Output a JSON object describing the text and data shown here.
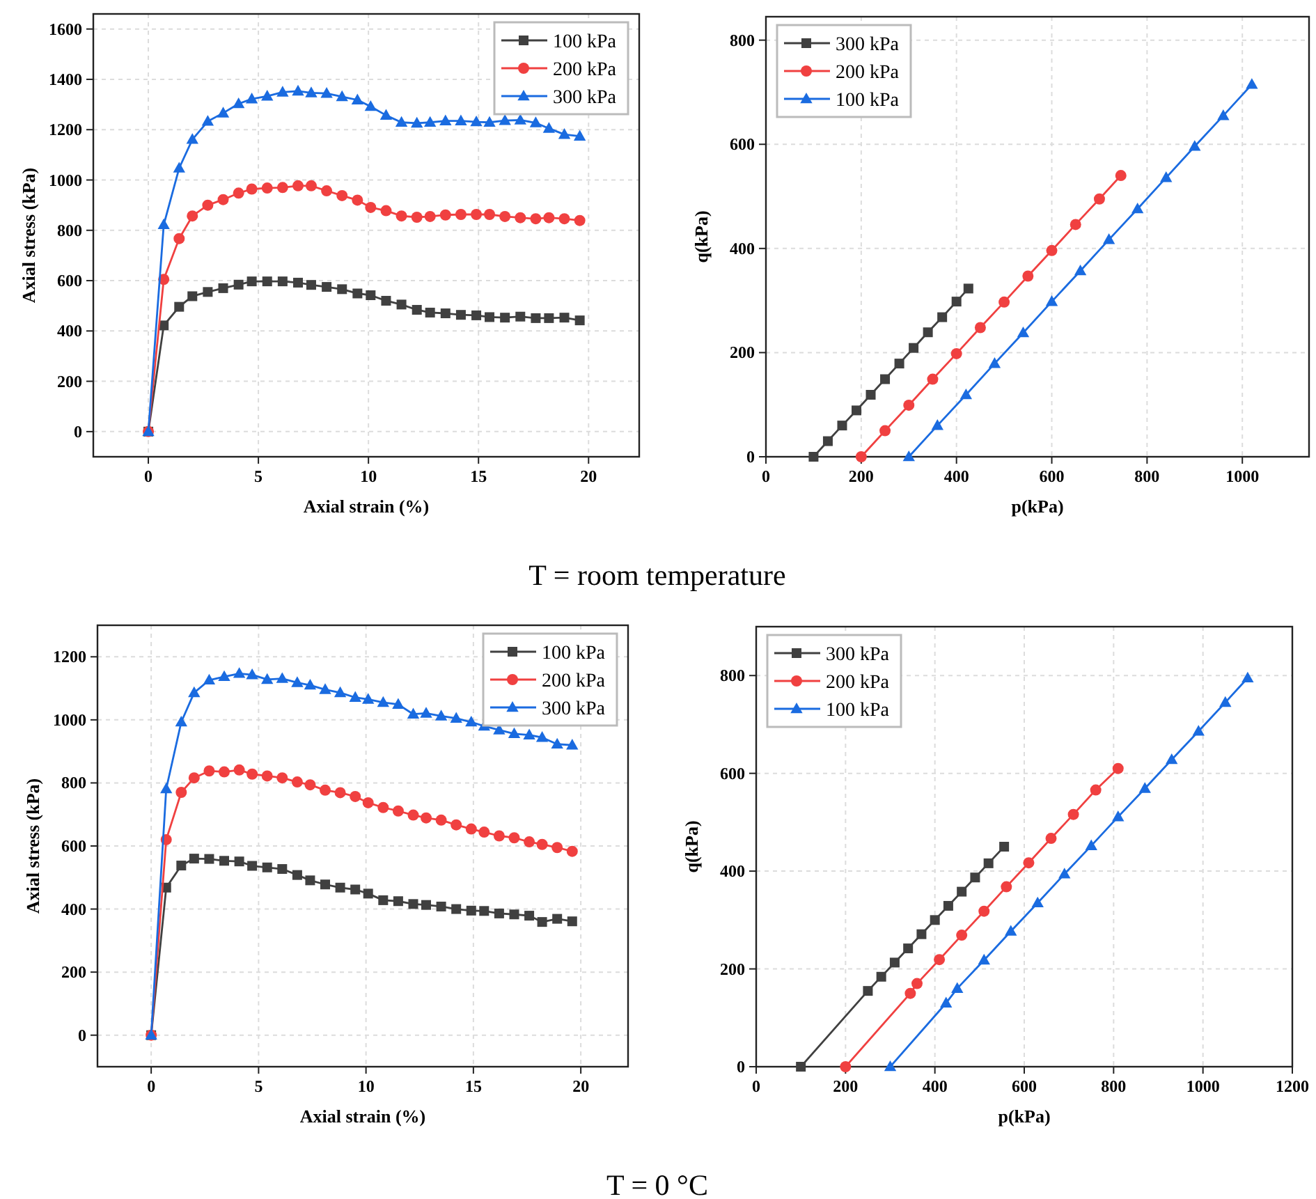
{
  "chart_data": [
    {
      "type": "line",
      "xlabel": "Axial strain (%)",
      "ylabel": "Axial stress (kPa)",
      "annotations": [
        "T = room temperature"
      ],
      "xlim": [
        -2.5,
        22.3
      ],
      "xticks": [
        0,
        5,
        10,
        15,
        20
      ],
      "ylim": [
        -100,
        1660
      ],
      "yticks": [
        0,
        200,
        400,
        600,
        800,
        1000,
        1200,
        1400,
        1600
      ],
      "grid": true,
      "legend": "top right",
      "x": [
        0,
        0.7,
        1.4,
        2.0,
        2.7,
        3.4,
        4.1,
        4.7,
        5.4,
        6.1,
        6.8,
        7.4,
        8.1,
        8.8,
        9.5,
        10.1,
        10.8,
        11.5,
        12.2,
        12.8,
        13.5,
        14.2,
        14.9,
        15.5,
        16.2,
        16.9,
        17.6,
        18.2,
        18.9,
        19.6
      ],
      "series": [
        {
          "name": "100 kPa",
          "color": "#404040",
          "marker": "square",
          "values": [
            0,
            422,
            496,
            538,
            555,
            570,
            584,
            597,
            597,
            597,
            592,
            583,
            575,
            566,
            549,
            542,
            520,
            505,
            484,
            473,
            470,
            464,
            462,
            455,
            453,
            457,
            451,
            451,
            453,
            442
          ]
        },
        {
          "name": "200 kPa",
          "color": "#f04040",
          "marker": "circle",
          "values": [
            0,
            605,
            767,
            857,
            900,
            922,
            948,
            964,
            968,
            970,
            977,
            977,
            957,
            938,
            920,
            891,
            878,
            857,
            852,
            855,
            861,
            863,
            863,
            863,
            855,
            850,
            846,
            850,
            846,
            839
          ]
        },
        {
          "name": "300 kPa",
          "color": "#1a6be0",
          "marker": "triangle",
          "values": [
            0,
            822,
            1047,
            1161,
            1233,
            1266,
            1303,
            1322,
            1333,
            1349,
            1353,
            1346,
            1344,
            1331,
            1318,
            1292,
            1257,
            1229,
            1226,
            1229,
            1235,
            1235,
            1231,
            1229,
            1236,
            1238,
            1227,
            1205,
            1181,
            1174
          ]
        }
      ]
    },
    {
      "type": "line",
      "xlabel": "p(kPa)",
      "ylabel": "q(kPa)",
      "xlim": [
        0,
        1140
      ],
      "xticks": [
        0,
        200,
        400,
        600,
        800,
        1000
      ],
      "ylim": [
        0,
        845
      ],
      "yticks": [
        0,
        200,
        400,
        600,
        800
      ],
      "grid": true,
      "legend": "top left",
      "series": [
        {
          "name": "300 kPa",
          "color": "#404040",
          "marker": "square",
          "x": [
            100,
            130,
            160,
            190,
            220,
            250,
            280,
            310,
            340,
            370,
            400,
            425
          ],
          "values": [
            0,
            30,
            60,
            89,
            119,
            149,
            179,
            209,
            239,
            268,
            298,
            323
          ]
        },
        {
          "name": "200 kPa",
          "color": "#f04040",
          "marker": "circle",
          "x": [
            200,
            250,
            300,
            350,
            400,
            450,
            500,
            550,
            600,
            650,
            700,
            745
          ],
          "values": [
            0,
            50,
            99,
            149,
            198,
            248,
            297,
            347,
            396,
            446,
            495,
            540
          ]
        },
        {
          "name": "100 kPa",
          "color": "#1a6be0",
          "marker": "triangle",
          "x": [
            300,
            360,
            420,
            480,
            540,
            600,
            660,
            720,
            780,
            840,
            900,
            960,
            1020
          ],
          "values": [
            0,
            60,
            119,
            179,
            238,
            298,
            357,
            417,
            476,
            536,
            596,
            655,
            715
          ]
        }
      ]
    },
    {
      "type": "line",
      "xlabel": "Axial strain (%)",
      "ylabel": "Axial stress (kPa)",
      "annotations": [
        "T = 0 °C"
      ],
      "xlim": [
        -2.5,
        22.2
      ],
      "xticks": [
        0,
        5,
        10,
        15,
        20
      ],
      "ylim": [
        -100,
        1300
      ],
      "yticks": [
        0,
        200,
        400,
        600,
        800,
        1000,
        1200
      ],
      "grid": true,
      "legend": "top right",
      "x": [
        0,
        0.7,
        1.4,
        2.0,
        2.7,
        3.4,
        4.1,
        4.7,
        5.4,
        6.1,
        6.8,
        7.4,
        8.1,
        8.8,
        9.5,
        10.1,
        10.8,
        11.5,
        12.2,
        12.8,
        13.5,
        14.2,
        14.9,
        15.5,
        16.2,
        16.9,
        17.6,
        18.2,
        18.9,
        19.6
      ],
      "series": [
        {
          "name": "100 kPa",
          "color": "#404040",
          "marker": "square",
          "values": [
            0,
            468,
            538,
            560,
            559,
            553,
            551,
            537,
            532,
            527,
            508,
            491,
            478,
            468,
            462,
            449,
            428,
            425,
            416,
            413,
            408,
            400,
            395,
            394,
            386,
            383,
            379,
            359,
            369,
            361
          ]
        },
        {
          "name": "200 kPa",
          "color": "#f04040",
          "marker": "circle",
          "values": [
            0,
            620,
            770,
            816,
            838,
            835,
            841,
            828,
            822,
            816,
            803,
            794,
            777,
            769,
            757,
            737,
            722,
            711,
            698,
            689,
            682,
            667,
            654,
            644,
            632,
            626,
            613,
            605,
            595,
            583
          ]
        },
        {
          "name": "300 kPa",
          "color": "#1a6be0",
          "marker": "triangle",
          "values": [
            0,
            781,
            993,
            1086,
            1126,
            1137,
            1147,
            1143,
            1128,
            1131,
            1118,
            1110,
            1096,
            1086,
            1071,
            1065,
            1055,
            1049,
            1018,
            1021,
            1012,
            1005,
            993,
            980,
            968,
            956,
            952,
            944,
            923,
            920
          ]
        }
      ]
    },
    {
      "type": "line",
      "xlabel": "p(kPa)",
      "ylabel": "q(kPa)",
      "xlim": [
        0,
        1200
      ],
      "xticks": [
        0,
        200,
        400,
        600,
        800,
        1000,
        1200
      ],
      "ylim": [
        0,
        900
      ],
      "yticks": [
        0,
        200,
        400,
        600,
        800
      ],
      "grid": true,
      "legend": "top left",
      "series": [
        {
          "name": "300 kPa",
          "color": "#404040",
          "marker": "square",
          "x": [
            100,
            250,
            280,
            310,
            340,
            370,
            400,
            430,
            460,
            490,
            520,
            555
          ],
          "values": [
            0,
            155,
            184,
            213,
            242,
            271,
            300,
            329,
            358,
            387,
            416,
            450
          ]
        },
        {
          "name": "200 kPa",
          "color": "#f04040",
          "marker": "circle",
          "x": [
            200,
            345,
            360,
            410,
            460,
            510,
            560,
            610,
            660,
            710,
            760,
            810
          ],
          "values": [
            0,
            150,
            170,
            219,
            269,
            318,
            368,
            417,
            467,
            516,
            566,
            610
          ]
        },
        {
          "name": "100 kPa",
          "color": "#1a6be0",
          "marker": "triangle",
          "x": [
            300,
            425,
            450,
            510,
            570,
            630,
            690,
            750,
            810,
            870,
            930,
            990,
            1050,
            1100
          ],
          "values": [
            0,
            130,
            160,
            218,
            277,
            335,
            394,
            452,
            511,
            569,
            628,
            686,
            745,
            795
          ]
        }
      ]
    }
  ]
}
